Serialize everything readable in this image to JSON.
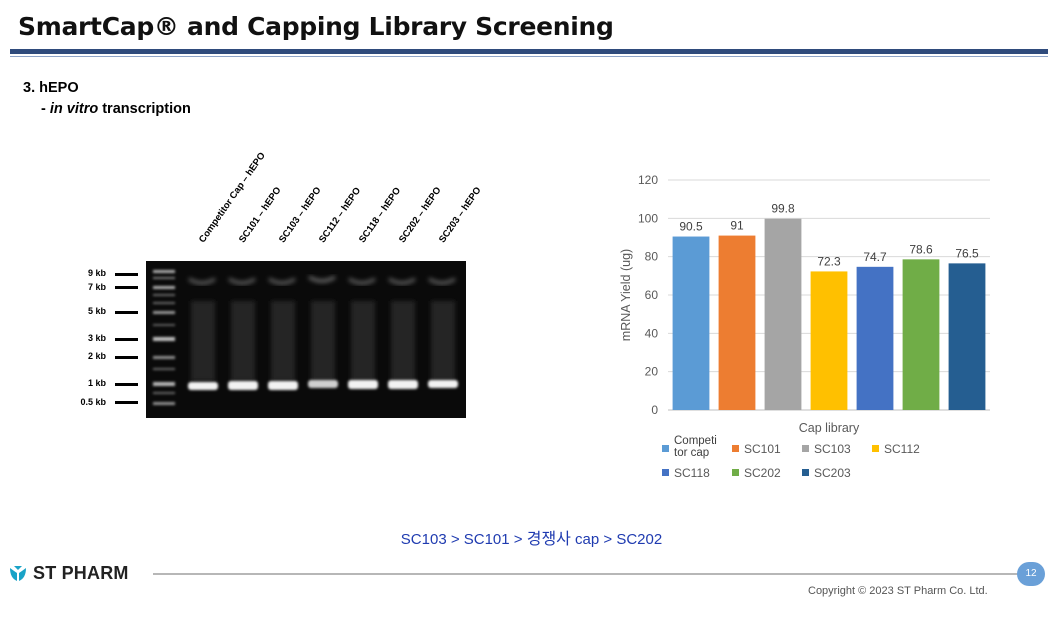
{
  "header": {
    "title": "SmartCap® and Capping Library Screening"
  },
  "section": {
    "heading": "3. hEPO",
    "sub_prefix": "- ",
    "sub_italic": "in vitro",
    "sub_suffix": " transcription"
  },
  "gel": {
    "lanes": [
      "Competitor Cap – hEPO",
      "SC101 – hEPO",
      "SC103 – hEPO",
      "SC112 – hEPO",
      "SC118 – hEPO",
      "SC202 – hEPO",
      "SC203 – hEPO"
    ],
    "markers": [
      "9 kb",
      "7 kb",
      "5 kb",
      "3 kb",
      "2 kb",
      "1 kb",
      "0.5 kb"
    ]
  },
  "chart_data": {
    "type": "bar",
    "categories": [
      "Competitor cap",
      "SC101",
      "SC103",
      "SC112",
      "SC118",
      "SC202",
      "SC203"
    ],
    "values": [
      90.5,
      91,
      99.8,
      72.3,
      74.7,
      78.6,
      76.5
    ],
    "data_labels": [
      "90.5",
      "91",
      "99.8",
      "72.3",
      "74.7",
      "78.6",
      "76.5"
    ],
    "legend_labels": [
      "Competi tor cap",
      "SC101",
      "SC103",
      "SC112",
      "SC118",
      "SC202",
      "SC203"
    ],
    "colors": [
      "#5b9bd5",
      "#ed7d31",
      "#a5a5a5",
      "#ffc000",
      "#4472c4",
      "#70ad47",
      "#255e91"
    ],
    "title": "",
    "xlabel": "Cap library",
    "ylabel": "mRNA Yield (ug)",
    "ylim": [
      0,
      120
    ],
    "yticks": [
      0,
      20,
      40,
      60,
      80,
      100,
      120
    ],
    "grid": true,
    "legend_position": "bottom"
  },
  "ranking": {
    "part1": "SC103 > SC101 > ",
    "part2": "경쟁사",
    "part3": " cap > SC202"
  },
  "footer": {
    "logo_text": "ST PHARM",
    "page_number": "12",
    "copyright": "Copyright ©  2023 ST Pharm Co. Ltd."
  }
}
